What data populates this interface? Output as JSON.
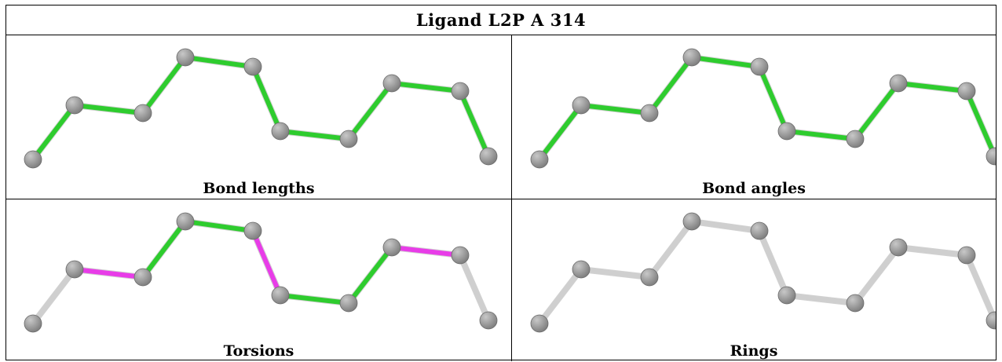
{
  "title": "Ligand L2P A 314",
  "colors": {
    "ok_bond": "#2ecc2e",
    "outlier_bond": "#e83ce8",
    "neutral_bond": "#cfcfcf",
    "atom": "#808080",
    "atom_highlight": "#c8c8c8",
    "border": "#000000"
  },
  "panels": [
    {
      "caption": "Bond lengths",
      "bond_colors": [
        "green",
        "green",
        "green",
        "green",
        "green",
        "green",
        "green",
        "green",
        "green",
        "green"
      ]
    },
    {
      "caption": "Bond angles",
      "bond_colors": [
        "green",
        "green",
        "green",
        "green",
        "green",
        "green",
        "green",
        "green",
        "green",
        "green"
      ]
    },
    {
      "caption": "Torsions",
      "bond_colors": [
        "gray",
        "magenta",
        "green",
        "green",
        "magenta",
        "green",
        "green",
        "magenta",
        "gray",
        "gray"
      ]
    },
    {
      "caption": "Rings",
      "bond_colors": [
        "gray",
        "gray",
        "gray",
        "gray",
        "gray",
        "gray",
        "gray",
        "gray",
        "gray",
        "gray"
      ]
    }
  ]
}
